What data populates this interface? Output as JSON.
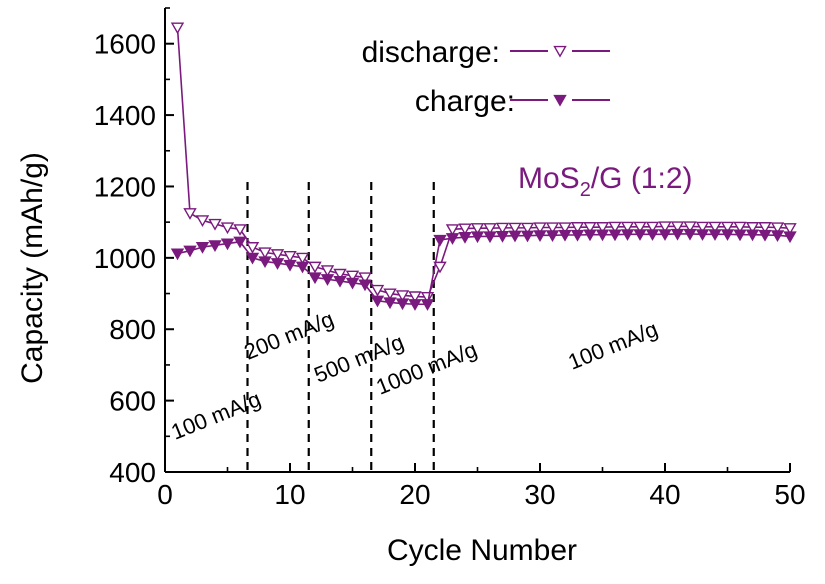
{
  "colors": {
    "series": "#7a1a7e",
    "axis": "#000000",
    "divider": "#000000"
  },
  "chart_data": {
    "type": "scatter",
    "title": "",
    "xlabel": "Cycle Number",
    "ylabel": "Capacity (mAh/g)",
    "xlim": [
      0,
      50
    ],
    "ylim": [
      400,
      1700
    ],
    "x_ticks": [
      "0",
      "10",
      "20",
      "30",
      "40",
      "50"
    ],
    "y_ticks": [
      "400",
      "600",
      "800",
      "1000",
      "1200",
      "1400",
      "1600"
    ],
    "grid": false,
    "legend_position": "top-center",
    "annotation": {
      "main": "MoS",
      "sub": "2",
      "rest": "/G (1:2)"
    },
    "dividers": [
      6.6,
      11.5,
      16.5,
      21.5
    ],
    "rate_labels": [
      "100 mA/g",
      "200 mA/g",
      "500 mA/g",
      "1000 mA/g",
      "100 mA/g"
    ],
    "series": [
      {
        "name": "discharge:",
        "marker": "triangle-down-open",
        "x": [
          1,
          2,
          3,
          4,
          5,
          6,
          7,
          8,
          9,
          10,
          11,
          12,
          13,
          14,
          15,
          16,
          17,
          18,
          19,
          20,
          21,
          22,
          23,
          24,
          25,
          26,
          27,
          28,
          29,
          30,
          31,
          32,
          33,
          34,
          35,
          36,
          37,
          38,
          39,
          40,
          41,
          42,
          43,
          44,
          45,
          46,
          47,
          48,
          49,
          50
        ],
        "y": [
          1645,
          1125,
          1105,
          1095,
          1085,
          1080,
          1030,
          1015,
          1010,
          1005,
          1000,
          975,
          965,
          955,
          950,
          945,
          910,
          900,
          895,
          892,
          890,
          975,
          1080,
          1082,
          1083,
          1083,
          1084,
          1084,
          1084,
          1085,
          1085,
          1085,
          1086,
          1086,
          1086,
          1087,
          1087,
          1087,
          1087,
          1088,
          1088,
          1088,
          1087,
          1087,
          1087,
          1087,
          1086,
          1086,
          1085,
          1083
        ]
      },
      {
        "name": "charge:",
        "marker": "triangle-down-filled",
        "x": [
          1,
          2,
          3,
          4,
          5,
          6,
          7,
          8,
          9,
          10,
          11,
          12,
          13,
          14,
          15,
          16,
          17,
          18,
          19,
          20,
          21,
          22,
          23,
          24,
          25,
          26,
          27,
          28,
          29,
          30,
          31,
          32,
          33,
          34,
          35,
          36,
          37,
          38,
          39,
          40,
          41,
          42,
          43,
          44,
          45,
          46,
          47,
          48,
          49,
          50
        ],
        "y": [
          1012,
          1020,
          1030,
          1035,
          1040,
          1045,
          1000,
          990,
          985,
          980,
          975,
          945,
          940,
          935,
          930,
          925,
          880,
          875,
          872,
          870,
          870,
          1050,
          1055,
          1058,
          1060,
          1060,
          1061,
          1062,
          1062,
          1063,
          1063,
          1064,
          1064,
          1065,
          1065,
          1065,
          1066,
          1066,
          1066,
          1066,
          1067,
          1067,
          1066,
          1066,
          1066,
          1065,
          1065,
          1064,
          1063,
          1060
        ]
      }
    ]
  }
}
